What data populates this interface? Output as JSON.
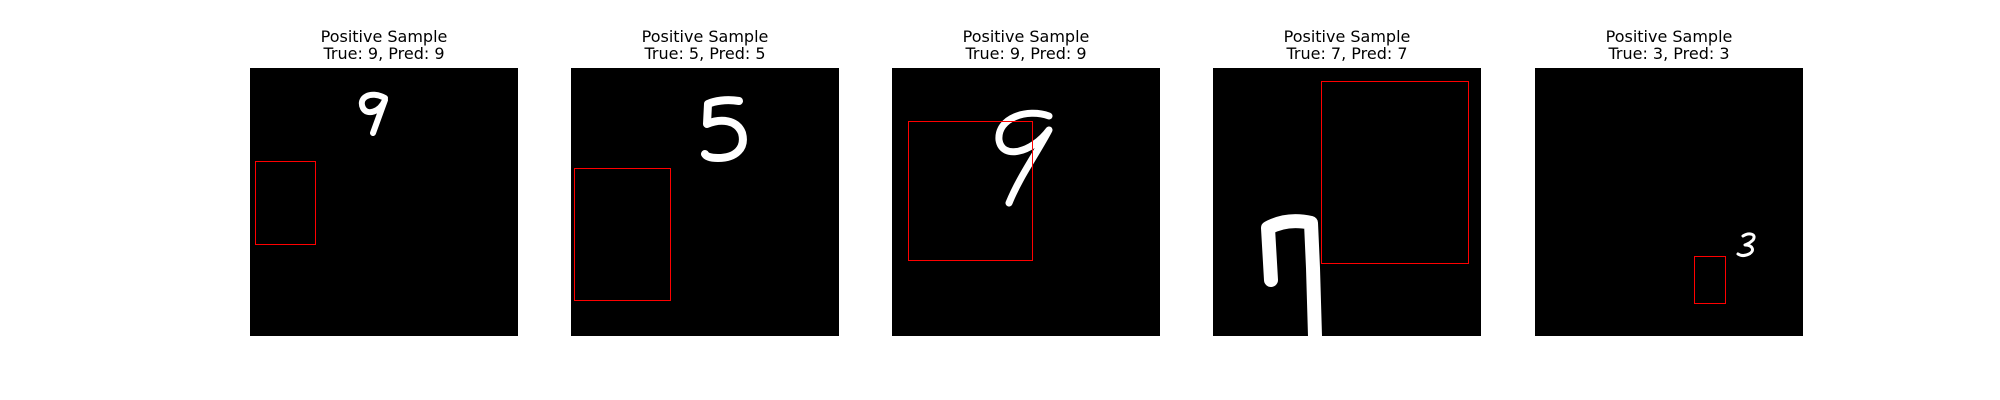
{
  "panels": [
    {
      "title": "Positive Sample",
      "subtitle": "True: 9, Pred: 9",
      "digit": "9",
      "true_label": 9,
      "pred_label": 9
    },
    {
      "title": "Positive Sample",
      "subtitle": "True: 5, Pred: 5",
      "digit": "5",
      "true_label": 5,
      "pred_label": 5
    },
    {
      "title": "Positive Sample",
      "subtitle": "True: 9, Pred: 9",
      "digit": "9",
      "true_label": 9,
      "pred_label": 9
    },
    {
      "title": "Positive Sample",
      "subtitle": "True: 7, Pred: 7",
      "digit": "7",
      "true_label": 7,
      "pred_label": 7
    },
    {
      "title": "Positive Sample",
      "subtitle": "True: 3, Pred: 3",
      "digit": "3",
      "true_label": 3,
      "pred_label": 3
    }
  ],
  "colors": {
    "background": "#000000",
    "digit": "#ffffff",
    "box": "#ff0000"
  }
}
